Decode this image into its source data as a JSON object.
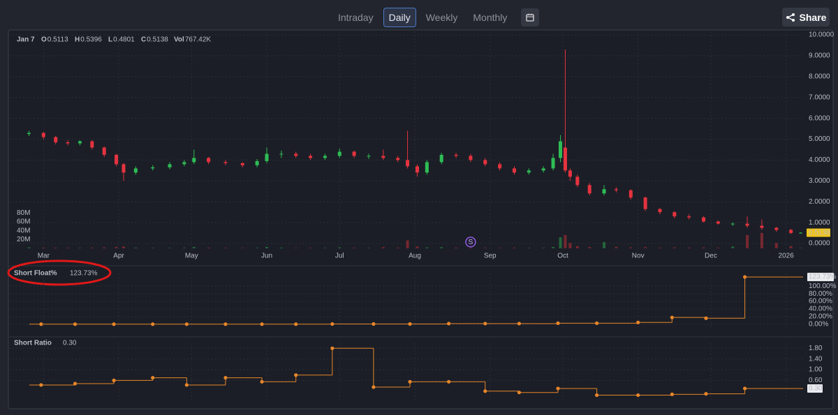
{
  "toolbar": {
    "tabs": [
      "Intraday",
      "Daily",
      "Weekly",
      "Monthly"
    ],
    "active_tab": 1,
    "share": "Share"
  },
  "chart_data": [
    {
      "type": "candlestick",
      "legend": {
        "date": "Jan 7",
        "keys": [
          "O",
          "H",
          "L",
          "C",
          "Vol"
        ]
      },
      "x": [
        -6,
        0,
        5,
        10,
        15,
        20,
        25,
        30,
        33,
        38,
        45,
        52,
        58,
        62,
        68,
        75,
        82,
        88,
        92,
        98,
        104,
        110,
        116,
        122,
        128,
        134,
        140,
        146,
        150,
        154,
        158,
        164,
        170,
        176,
        182,
        188,
        194,
        200,
        206,
        210,
        213,
        215,
        217,
        220,
        225,
        231,
        236,
        242,
        248,
        254,
        260,
        266,
        272,
        278,
        284,
        290,
        296,
        302,
        308,
        312
      ],
      "open": [
        5.25,
        5.3,
        5.1,
        4.85,
        4.8,
        4.9,
        4.6,
        4.25,
        3.8,
        3.4,
        3.6,
        3.65,
        3.8,
        3.9,
        4.1,
        3.9,
        3.85,
        3.75,
        3.95,
        4.3,
        4.3,
        4.2,
        4.1,
        4.2,
        4.4,
        4.2,
        4.2,
        4.1,
        4.0,
        3.7,
        3.4,
        3.9,
        4.25,
        4.2,
        4.0,
        3.8,
        3.6,
        3.4,
        3.5,
        3.6,
        4.1,
        4.6,
        3.5,
        3.2,
        2.8,
        2.4,
        2.6,
        2.55,
        2.2,
        1.65,
        1.5,
        1.3,
        1.25,
        1.05,
        0.95,
        0.95,
        0.85,
        0.75,
        0.65,
        0.5113
      ],
      "high": [
        5.4,
        5.35,
        5.15,
        4.95,
        4.95,
        4.95,
        4.65,
        4.3,
        3.85,
        3.7,
        3.75,
        3.9,
        4.0,
        4.5,
        4.15,
        4.0,
        3.9,
        4.05,
        4.6,
        4.45,
        4.4,
        4.3,
        4.3,
        4.55,
        4.45,
        4.3,
        4.5,
        4.2,
        5.4,
        3.8,
        4.0,
        4.35,
        4.35,
        4.3,
        4.1,
        3.9,
        3.7,
        3.6,
        3.7,
        4.3,
        5.2,
        9.3,
        3.6,
        3.3,
        2.9,
        2.8,
        2.7,
        2.6,
        2.25,
        1.7,
        1.55,
        1.4,
        1.3,
        1.1,
        1.0,
        1.3,
        1.15,
        0.8,
        0.7,
        0.5396
      ],
      "low": [
        5.15,
        5.0,
        4.75,
        4.7,
        4.7,
        4.5,
        4.15,
        3.7,
        3.0,
        3.3,
        3.5,
        3.55,
        3.7,
        3.8,
        3.8,
        3.75,
        3.65,
        3.65,
        3.85,
        4.1,
        4.1,
        4.0,
        4.0,
        4.1,
        4.1,
        4.05,
        4.0,
        3.9,
        3.6,
        3.2,
        3.3,
        3.8,
        4.1,
        3.9,
        3.7,
        3.5,
        3.3,
        3.3,
        3.4,
        3.5,
        3.9,
        3.4,
        3.0,
        2.7,
        2.3,
        2.3,
        2.45,
        2.1,
        1.55,
        1.4,
        1.2,
        1.15,
        1.0,
        0.9,
        0.85,
        0.75,
        0.65,
        0.55,
        0.45,
        0.4801
      ],
      "close": [
        5.3,
        5.1,
        4.85,
        4.8,
        4.9,
        4.6,
        4.25,
        3.8,
        3.4,
        3.6,
        3.65,
        3.8,
        3.9,
        4.1,
        3.9,
        3.85,
        3.75,
        3.95,
        4.3,
        4.3,
        4.2,
        4.1,
        4.2,
        4.4,
        4.2,
        4.2,
        4.1,
        4.0,
        3.7,
        3.4,
        3.9,
        4.25,
        4.2,
        4.0,
        3.8,
        3.6,
        3.4,
        3.5,
        3.6,
        4.1,
        4.9,
        3.5,
        3.2,
        2.8,
        2.4,
        2.6,
        2.55,
        2.2,
        1.65,
        1.5,
        1.3,
        1.25,
        1.05,
        0.95,
        0.95,
        0.85,
        0.75,
        0.65,
        0.5,
        0.5138
      ],
      "volume": [
        2000000,
        1500000,
        1500000,
        1200000,
        1000000,
        1500000,
        2000000,
        3000000,
        4000000,
        1500000,
        1000000,
        1000000,
        1200000,
        3000000,
        1500000,
        1000000,
        1000000,
        1200000,
        3000000,
        1500000,
        1200000,
        1000000,
        1000000,
        2000000,
        1200000,
        1000000,
        2500000,
        1500000,
        18000000,
        4000000,
        2000000,
        2500000,
        1500000,
        1200000,
        1200000,
        1000000,
        1500000,
        1000000,
        1000000,
        3000000,
        25000000,
        30000000,
        12000000,
        5000000,
        3000000,
        14000000,
        3000000,
        2000000,
        2500000,
        1500000,
        2000000,
        1500000,
        2000000,
        1500000,
        4000000,
        30000000,
        35000000,
        12000000,
        5000000,
        767420
      ],
      "volume_label": "767.42K",
      "up_color": "#2ebd55",
      "down_color": "#e5333f",
      "events": [
        {
          "x": 176,
          "label": "S"
        }
      ],
      "xlim": [
        -7,
        313
      ],
      "xticks": [
        {
          "value": 0,
          "label": "Mar"
        },
        {
          "value": 31,
          "label": "Apr"
        },
        {
          "value": 61,
          "label": "May"
        },
        {
          "value": 92,
          "label": "Jun"
        },
        {
          "value": 122,
          "label": "Jul"
        },
        {
          "value": 153,
          "label": "Aug"
        },
        {
          "value": 184,
          "label": "Sep"
        },
        {
          "value": 214,
          "label": "Oct"
        },
        {
          "value": 245,
          "label": "Nov"
        },
        {
          "value": 275,
          "label": "Dec"
        },
        {
          "value": 306,
          "label": "2026"
        }
      ],
      "ylim": [
        -0.3,
        10.17
      ],
      "yticks": [
        {
          "value": 0,
          "label": "0.0000"
        },
        {
          "value": 1,
          "label": "1.0000"
        },
        {
          "value": 2,
          "label": "2.0000"
        },
        {
          "value": 3,
          "label": "3.0000"
        },
        {
          "value": 4,
          "label": "4.0000"
        },
        {
          "value": 5,
          "label": "5.0000"
        },
        {
          "value": 6,
          "label": "6.0000"
        },
        {
          "value": 7,
          "label": "7.0000"
        },
        {
          "value": 8,
          "label": "8.0000"
        },
        {
          "value": 9,
          "label": "9.0000"
        },
        {
          "value": 10,
          "label": "10.0000"
        }
      ],
      "vol_ylim": [
        0,
        120000000
      ],
      "vol_ticks": [
        {
          "value": 20000000,
          "label": "20M"
        },
        {
          "value": 40000000,
          "label": "40M"
        },
        {
          "value": 60000000,
          "label": "60M"
        },
        {
          "value": 80000000,
          "label": "80M"
        }
      ],
      "grid": true
    },
    {
      "type": "step",
      "title": "Short Float%",
      "last_label": "123.73%",
      "color": "#e8862a",
      "x": [
        -1,
        13,
        29,
        45,
        59,
        75,
        90,
        104,
        119,
        136,
        151,
        167,
        182,
        196,
        212,
        228,
        245,
        259,
        273,
        289
      ],
      "values": [
        0.5,
        0.5,
        0.5,
        0.5,
        0.5,
        0.5,
        0.5,
        0.5,
        1,
        1,
        1,
        2,
        2,
        2,
        3,
        3,
        5,
        18,
        16,
        123.73
      ],
      "ylim": [
        -9,
        133
      ],
      "yticks": [
        {
          "value": 0,
          "label": "0.00%"
        },
        {
          "value": 20,
          "label": "20.00%"
        },
        {
          "value": 40,
          "label": "40.00%"
        },
        {
          "value": 60,
          "label": "60.00%"
        },
        {
          "value": 80,
          "label": "80.00%"
        },
        {
          "value": 100,
          "label": "100.00%"
        }
      ]
    },
    {
      "type": "step",
      "title": "Short Ratio",
      "last_label": "0.30",
      "color": "#e8862a",
      "x": [
        -1,
        13,
        29,
        45,
        59,
        75,
        90,
        104,
        119,
        136,
        151,
        167,
        182,
        196,
        212,
        228,
        245,
        259,
        273,
        289
      ],
      "values": [
        0.43,
        0.48,
        0.6,
        0.7,
        0.43,
        0.7,
        0.55,
        0.8,
        1.8,
        0.35,
        0.55,
        0.55,
        0.2,
        0.15,
        0.3,
        0.05,
        0.05,
        0.08,
        0.1,
        0.3
      ],
      "ylim": [
        -0.17,
        1.99
      ],
      "yticks": [
        {
          "value": 0.6,
          "label": "0.60"
        },
        {
          "value": 1,
          "label": "1.00"
        },
        {
          "value": 1.4,
          "label": "1.40"
        },
        {
          "value": 1.8,
          "label": "1.80"
        }
      ]
    }
  ]
}
